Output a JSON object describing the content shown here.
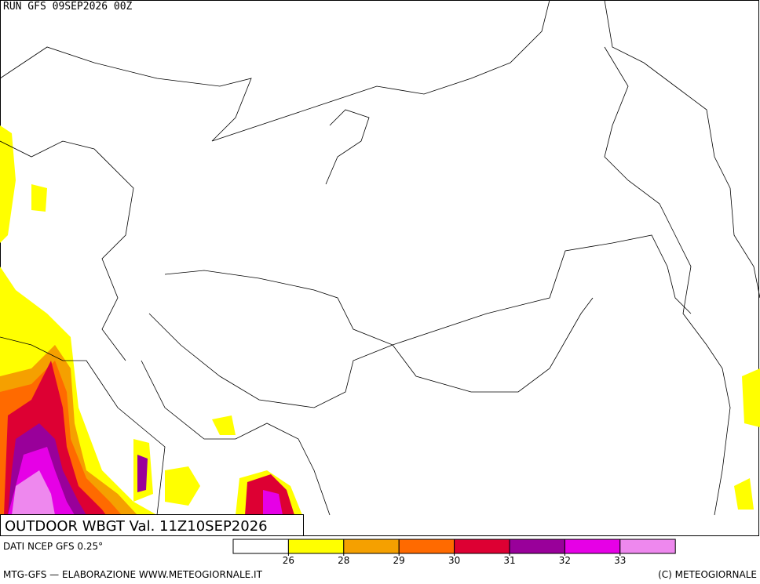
{
  "header": {
    "run": "RUN GFS 09SEP2026 00Z"
  },
  "title": "OUTDOOR WBGT Val. 11Z10SEP2026",
  "legend": {
    "colors": [
      "#ffffff",
      "#ffff00",
      "#f5a000",
      "#ff6a00",
      "#dd0033",
      "#99009a",
      "#e600e6",
      "#ee88ee"
    ],
    "ticks": [
      26,
      28,
      29,
      30,
      31,
      32,
      33
    ]
  },
  "footer": {
    "source": "DATI NCEP GFS 0.25°",
    "credit": "MTG-GFS — ELABORAZIONE WWW.METEOGIORNALE.IT",
    "copyright": "(C) METEOGIORNALE"
  }
}
